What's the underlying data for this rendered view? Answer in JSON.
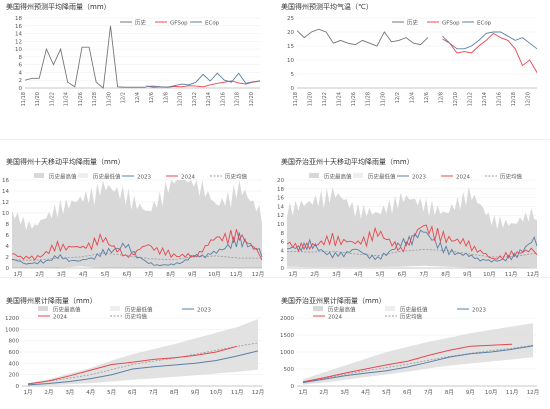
{
  "colors": {
    "history": "#777777",
    "gfs": "#e8474f",
    "ecmwf": "#5b7fa8",
    "band": "#d8d8d8",
    "mean": "#999999",
    "y2023": "#5b7fa8",
    "y2024": "#e8474f"
  },
  "panels": {
    "p1": {
      "title": "美国得州预测平均降雨量（mm）"
    },
    "p2": {
      "title": "美国得州预测平均气温（℃）"
    },
    "p3": {
      "title": "美国得州十天移动平均降雨量（mm）"
    },
    "p4": {
      "title": "美国乔治亚州十天移动平均降雨量（mm）"
    },
    "p5": {
      "title": "美国得州累计降雨量（mm）"
    },
    "p6": {
      "title": "美国乔治亚州累计降雨量（mm）"
    }
  },
  "chart_data": [
    {
      "id": "p1",
      "type": "line",
      "title": "美国得州预测平均降雨量（mm）",
      "ylim": [
        0,
        18
      ],
      "yticks": [
        0,
        2,
        4,
        6,
        8,
        10,
        12,
        14,
        16,
        18
      ],
      "legend": [
        "历史",
        "GFSop",
        "ECop"
      ],
      "legend_position": "top",
      "x": [
        "11/18",
        "11/19",
        "11/20",
        "11/21",
        "11/22",
        "11/23",
        "11/24",
        "11/25",
        "11/26",
        "11/27",
        "11/28",
        "11/29",
        "11/30",
        "12/1",
        "12/2",
        "12/3",
        "12/4",
        "12/5",
        "12/6",
        "12/7",
        "12/8",
        "12/9",
        "12/10",
        "12/11",
        "12/12",
        "12/13",
        "12/14",
        "12/15",
        "12/16",
        "12/17",
        "12/18",
        "12/19",
        "12/20",
        "12/21"
      ],
      "x_tick_labels": [
        "11/18",
        "11/20",
        "11/22",
        "11/24",
        "11/26",
        "11/28",
        "11/30",
        "12/2",
        "12/4",
        "12/6",
        "12/8",
        "12/10",
        "12/12",
        "12/14",
        "12/16",
        "12/18",
        "12/20"
      ],
      "series": [
        {
          "name": "历史",
          "values": [
            2,
            2.5,
            2.5,
            10,
            6,
            10,
            1.5,
            0.3,
            10.5,
            10.5,
            1.5,
            0,
            16,
            0.3,
            0.2,
            0.2,
            0.2,
            0.2,
            null,
            null,
            null,
            null,
            null,
            null,
            null,
            null,
            null,
            null,
            null,
            null,
            null,
            null,
            null,
            null
          ]
        },
        {
          "name": "GFSop",
          "values": [
            null,
            null,
            null,
            null,
            null,
            null,
            null,
            null,
            null,
            null,
            null,
            null,
            null,
            null,
            null,
            null,
            null,
            0.5,
            0.2,
            0.3,
            0.2,
            0.4,
            0.3,
            0.6,
            0.5,
            0.3,
            0.8,
            1.2,
            1.5,
            1.8,
            1.3,
            1,
            1.5,
            1.8
          ]
        },
        {
          "name": "ECop",
          "values": [
            null,
            null,
            null,
            null,
            null,
            null,
            null,
            null,
            null,
            null,
            null,
            null,
            null,
            null,
            null,
            null,
            null,
            0.4,
            0.5,
            0.3,
            0.2,
            0.6,
            1,
            0.8,
            1.5,
            3.5,
            1.8,
            3.8,
            2,
            1.5,
            3.8,
            1.2,
            1.6,
            1.8
          ]
        }
      ]
    },
    {
      "id": "p2",
      "type": "line",
      "title": "美国得州预测平均气温（℃）",
      "ylim": [
        0,
        25
      ],
      "yticks": [
        0,
        5,
        10,
        15,
        20,
        25
      ],
      "legend": [
        "历史",
        "GFSop",
        "ECop"
      ],
      "legend_position": "top",
      "x": [
        "11/18",
        "11/19",
        "11/20",
        "11/21",
        "11/22",
        "11/23",
        "11/24",
        "11/25",
        "11/26",
        "11/27",
        "11/28",
        "11/29",
        "11/30",
        "12/1",
        "12/2",
        "12/3",
        "12/4",
        "12/5",
        "12/6",
        "12/7",
        "12/8",
        "12/9",
        "12/10",
        "12/11",
        "12/12",
        "12/13",
        "12/14",
        "12/15",
        "12/16",
        "12/17",
        "12/18",
        "12/19",
        "12/20",
        "12/21"
      ],
      "x_tick_labels": [
        "11/18",
        "11/20",
        "11/22",
        "11/24",
        "11/26",
        "11/28",
        "11/30",
        "12/2",
        "12/4",
        "12/6",
        "12/8",
        "12/10",
        "12/12",
        "12/14",
        "12/16",
        "12/18",
        "12/20"
      ],
      "series": [
        {
          "name": "历史",
          "values": [
            20.5,
            18,
            20,
            21,
            20,
            16,
            17,
            16,
            15.5,
            17,
            16,
            15,
            20,
            16.5,
            17,
            18,
            16,
            15.5,
            18,
            null,
            null,
            null,
            null,
            null,
            null,
            null,
            null,
            null,
            null,
            null,
            null,
            null,
            null,
            null
          ]
        },
        {
          "name": "GFSop",
          "values": [
            null,
            null,
            null,
            null,
            null,
            null,
            null,
            null,
            null,
            null,
            null,
            null,
            null,
            null,
            null,
            null,
            null,
            null,
            null,
            null,
            17.5,
            16,
            12.5,
            13,
            12.5,
            15,
            17,
            19.5,
            18,
            17,
            14,
            8,
            10,
            5.5
          ]
        },
        {
          "name": "ECop",
          "values": [
            null,
            null,
            null,
            null,
            null,
            null,
            null,
            null,
            null,
            null,
            null,
            null,
            null,
            null,
            null,
            null,
            null,
            null,
            null,
            null,
            18.5,
            16,
            14,
            14,
            15,
            17,
            19.5,
            20,
            20,
            18.5,
            17,
            18,
            16,
            14
          ]
        }
      ]
    },
    {
      "id": "p3",
      "type": "line",
      "title": "美国得州十天移动平均降雨量（mm）",
      "ylim": [
        0,
        16
      ],
      "yticks": [
        0,
        2,
        4,
        6,
        8,
        10,
        12,
        14,
        16
      ],
      "legend": [
        "历史最高值",
        "历史最低值",
        "2023",
        "2024",
        "历史均值"
      ],
      "legend_position": "top",
      "x": [
        "1月",
        "2月",
        "3月",
        "4月",
        "5月",
        "6月",
        "7月",
        "8月",
        "9月",
        "10月",
        "11月",
        "12月"
      ],
      "hist_max": [
        8,
        6,
        9,
        10,
        12,
        11,
        8,
        13,
        14,
        9,
        12,
        8
      ],
      "hist_min": [
        0,
        0,
        0,
        0.3,
        0,
        0,
        0,
        0,
        0,
        0,
        0,
        0
      ],
      "hist_mean": [
        1.5,
        1.4,
        1.8,
        2,
        2.7,
        2.3,
        1.7,
        1.5,
        2,
        2.2,
        1.8,
        1.8
      ],
      "series": [
        {
          "name": "2023",
          "values": [
            1,
            0.5,
            1.5,
            0.8,
            2,
            3,
            0.5,
            0.3,
            1.5,
            2,
            4,
            2
          ]
        },
        {
          "name": "2024",
          "values": [
            1.8,
            1.2,
            3,
            2.6,
            4,
            1.5,
            3,
            1.8,
            1.5,
            4,
            4.5,
            1.5
          ]
        }
      ]
    },
    {
      "id": "p4",
      "type": "line",
      "title": "美国乔治亚州十天移动平均降雨量（mm）",
      "ylim": [
        0,
        20
      ],
      "yticks": [
        0,
        2,
        4,
        6,
        8,
        10,
        12,
        14,
        16,
        18,
        20
      ],
      "legend": [
        "历史最高值",
        "历史最低值",
        "2023",
        "2024",
        "历史均值"
      ],
      "legend_position": "top",
      "x": [
        "1月",
        "2月",
        "3月",
        "4月",
        "5月",
        "6月",
        "7月",
        "8月",
        "9月",
        "10月",
        "11月",
        "12月"
      ],
      "hist_max": [
        11,
        12,
        14,
        11,
        10,
        13,
        12,
        10,
        14,
        9,
        8,
        11
      ],
      "hist_min": [
        0.3,
        0.2,
        0.2,
        0.2,
        0.2,
        0.3,
        0.5,
        0.3,
        0.1,
        0,
        0,
        0.2
      ],
      "hist_mean": [
        3.8,
        3.6,
        3.8,
        3.2,
        2.8,
        3.8,
        4.2,
        4,
        3.2,
        2.5,
        2.6,
        3.4
      ],
      "series": [
        {
          "name": "2023",
          "values": [
            3,
            4,
            2,
            3,
            1.5,
            4,
            6,
            3,
            2,
            1,
            2,
            5
          ]
        },
        {
          "name": "2024",
          "values": [
            4,
            3.5,
            5,
            4,
            6,
            3,
            7,
            5,
            4,
            1.5,
            2.5,
            3
          ]
        }
      ]
    },
    {
      "id": "p5",
      "type": "area",
      "title": "美国得州累计降雨量（mm）",
      "ylim": [
        0,
        1200
      ],
      "yticks": [
        0,
        200,
        400,
        600,
        800,
        1000,
        1200
      ],
      "legend": [
        "历史最高值",
        "历史最低值",
        "2023",
        "2024",
        "历史均值"
      ],
      "legend_position": "top",
      "x": [
        "1月",
        "2月",
        "3月",
        "4月",
        "5月",
        "6月",
        "7月",
        "8月",
        "9月",
        "10月",
        "11月",
        "12月"
      ],
      "hist_max": [
        50,
        120,
        220,
        320,
        450,
        560,
        650,
        740,
        840,
        940,
        1040,
        1180
      ],
      "hist_min": [
        5,
        15,
        30,
        50,
        80,
        110,
        135,
        160,
        190,
        220,
        250,
        290
      ],
      "hist_mean": [
        40,
        85,
        140,
        200,
        290,
        380,
        440,
        490,
        560,
        630,
        700,
        760
      ],
      "series": [
        {
          "name": "2023",
          "values": [
            20,
            45,
            80,
            130,
            200,
            300,
            340,
            370,
            400,
            450,
            530,
            620
          ]
        },
        {
          "name": "2024",
          "values": [
            35,
            90,
            180,
            280,
            380,
            420,
            470,
            500,
            540,
            600,
            700,
            null
          ]
        }
      ]
    },
    {
      "id": "p6",
      "type": "area",
      "title": "美国乔治亚州累计降雨量（mm）",
      "ylim": [
        0,
        2000
      ],
      "yticks": [
        0,
        500,
        1000,
        1500,
        2000
      ],
      "legend": [
        "历史最高值",
        "历史最低值",
        "2023",
        "2024",
        "历史均值"
      ],
      "legend_position": "top",
      "x": [
        "1月",
        "2月",
        "3月",
        "4月",
        "5月",
        "6月",
        "7月",
        "8月",
        "9月",
        "10月",
        "11月",
        "12月"
      ],
      "hist_max": [
        200,
        400,
        600,
        800,
        1000,
        1150,
        1300,
        1420,
        1550,
        1650,
        1750,
        1850
      ],
      "hist_min": [
        40,
        100,
        180,
        260,
        340,
        420,
        520,
        600,
        660,
        720,
        780,
        850
      ],
      "hist_mean": [
        110,
        220,
        340,
        450,
        540,
        640,
        760,
        870,
        960,
        1040,
        1110,
        1200
      ],
      "series": [
        {
          "name": "2023",
          "values": [
            100,
            200,
            300,
            380,
            450,
            560,
            700,
            850,
            950,
            1000,
            1080,
            1180
          ]
        },
        {
          "name": "2024",
          "values": [
            120,
            240,
            380,
            500,
            620,
            730,
            900,
            1050,
            1170,
            1200,
            1230,
            null
          ]
        }
      ]
    }
  ]
}
